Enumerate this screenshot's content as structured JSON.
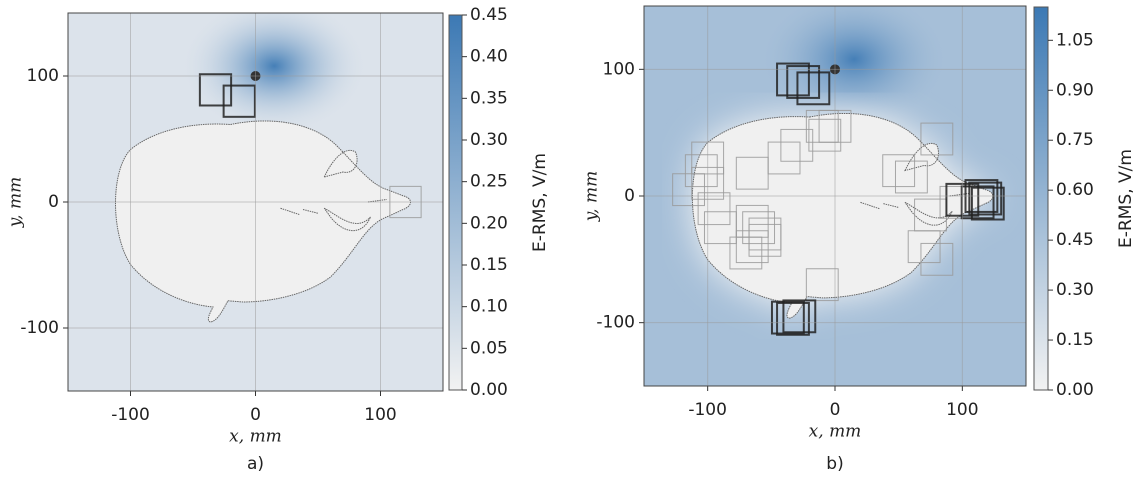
{
  "chart_data": [
    {
      "type": "heatmap",
      "caption": "a)",
      "xlabel": "x, mm",
      "ylabel": "y, mm",
      "colorbar_label": "E-RMS, V/m",
      "xlim": [
        -150,
        150
      ],
      "ylim": [
        -150,
        150
      ],
      "xticks": [
        -100,
        0,
        100
      ],
      "yticks": [
        -100,
        0,
        100
      ],
      "grid": true,
      "clim": [
        0,
        0.45
      ],
      "cticks": [
        {
          "value": 0,
          "label": "0.00"
        },
        {
          "value": 0.05,
          "label": "0.05"
        },
        {
          "value": 0.1,
          "label": "0.10"
        },
        {
          "value": 0.15,
          "label": "0.15"
        },
        {
          "value": 0.2,
          "label": "0.20"
        },
        {
          "value": 0.25,
          "label": "0.25"
        },
        {
          "value": 0.3,
          "label": "0.30"
        },
        {
          "value": 0.35,
          "label": "0.35"
        },
        {
          "value": 0.4,
          "label": "0.40"
        },
        {
          "value": 0.45,
          "label": "0.45"
        }
      ],
      "colormap": [
        "#f2f2f2",
        "#3c79b4"
      ],
      "source": {
        "x": 0,
        "y": 100
      },
      "square_size": 25,
      "squares_dark": {
        "x": [
          -32,
          -13
        ],
        "y": [
          89,
          80
        ]
      },
      "squares_light": {
        "x": [
          120
        ],
        "y": [
          0
        ]
      }
    },
    {
      "type": "heatmap",
      "caption": "b)",
      "xlabel": "x, mm",
      "ylabel": "y, mm",
      "colorbar_label": "E-RMS, V/m",
      "xlim": [
        -150,
        150
      ],
      "ylim": [
        -150,
        150
      ],
      "xticks": [
        -100,
        0,
        100
      ],
      "yticks": [
        -100,
        0,
        100
      ],
      "grid": true,
      "clim": [
        0,
        1.15
      ],
      "cticks": [
        {
          "value": 0,
          "label": "0.00"
        },
        {
          "value": 0.15,
          "label": "0.15"
        },
        {
          "value": 0.3,
          "label": "0.30"
        },
        {
          "value": 0.45,
          "label": "0.45"
        },
        {
          "value": 0.6,
          "label": "0.60"
        },
        {
          "value": 0.75,
          "label": "0.75"
        },
        {
          "value": 0.9,
          "label": "0.90"
        },
        {
          "value": 1.05,
          "label": "1.05"
        }
      ],
      "colormap": [
        "#f2f2f2",
        "#3c79b4"
      ],
      "source": {
        "x": 0,
        "y": 100
      },
      "square_size": 25,
      "squares_dark": {
        "x": [
          -33,
          -25,
          -17,
          -37,
          -33,
          -28,
          112,
          118,
          120,
          115,
          100
        ],
        "y": [
          92,
          90,
          85,
          -96,
          -97,
          -95,
          -5,
          -2,
          -6,
          0,
          -3
        ]
      },
      "squares_light": {
        "x": [
          -100,
          -105,
          -100,
          -115,
          -95,
          -90,
          -70,
          -65,
          -65,
          -65,
          -60,
          -55,
          -55,
          -40,
          -30,
          -10,
          -8,
          0,
          -10,
          60,
          50,
          80,
          75,
          70,
          80,
          95
        ],
        "y": [
          30,
          20,
          10,
          5,
          -10,
          -25,
          -45,
          -40,
          18,
          -20,
          -25,
          -30,
          -35,
          30,
          40,
          55,
          48,
          55,
          -70,
          15,
          20,
          45,
          -15,
          -40,
          -50,
          -5
        ]
      }
    }
  ]
}
